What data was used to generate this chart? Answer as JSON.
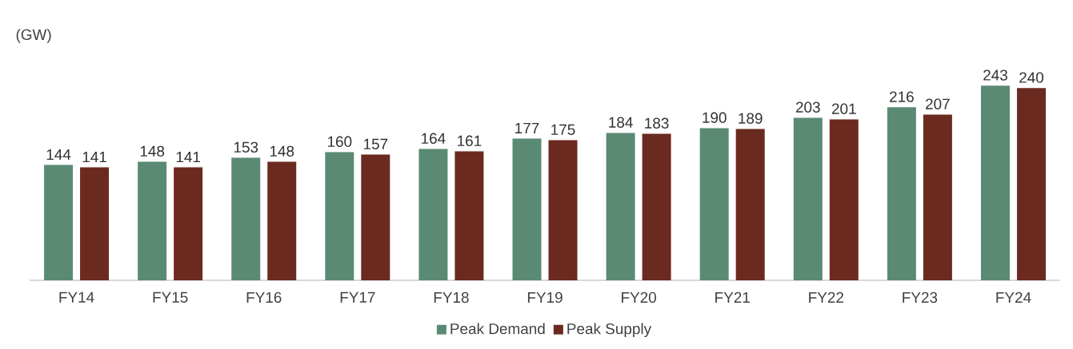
{
  "chart_data": {
    "type": "bar",
    "ylabel": "(GW)",
    "categories": [
      "FY14",
      "FY15",
      "FY16",
      "FY17",
      "FY18",
      "FY19",
      "FY20",
      "FY21",
      "FY22",
      "FY23",
      "FY24"
    ],
    "series": [
      {
        "name": "Peak Demand",
        "color": "#5b8a74",
        "values": [
          144,
          148,
          153,
          160,
          164,
          177,
          184,
          190,
          203,
          216,
          243
        ]
      },
      {
        "name": "Peak Supply",
        "color": "#6b2a1f",
        "values": [
          141,
          141,
          148,
          157,
          161,
          175,
          183,
          189,
          201,
          207,
          240
        ]
      }
    ],
    "data_labels": true,
    "legend": "bottom",
    "grid": false
  }
}
